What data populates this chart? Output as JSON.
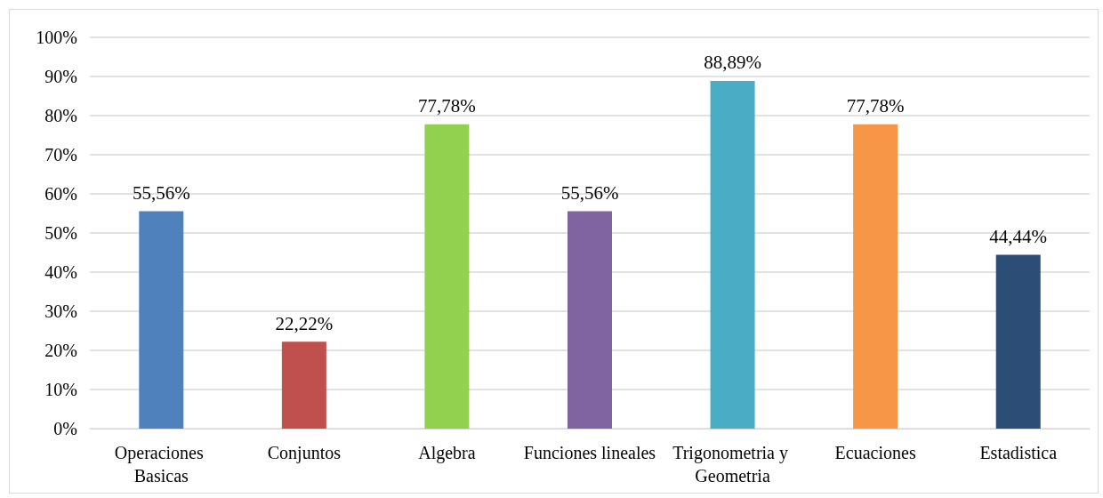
{
  "chart_data": {
    "type": "bar",
    "categories": [
      "Operaciones Basicas",
      "Conjuntos",
      "Algebra",
      "Funciones lineales",
      "Trigonometria y Geometria",
      "Ecuaciones",
      "Estadistica"
    ],
    "values": [
      55.56,
      22.22,
      77.78,
      55.56,
      88.89,
      77.78,
      44.44
    ],
    "value_labels": [
      "55,56%",
      "22,22%",
      "77,78%",
      "55,56%",
      "88,89%",
      "77,78%",
      "44,44%"
    ],
    "colors": [
      "#4f81bd",
      "#c0504d",
      "#92d050",
      "#8064a2",
      "#4bacc6",
      "#f79646",
      "#2c4d75"
    ],
    "ylim": [
      0,
      100
    ],
    "yticks": [
      {
        "value": 0,
        "label": "0%"
      },
      {
        "value": 10,
        "label": "10%"
      },
      {
        "value": 20,
        "label": "20%"
      },
      {
        "value": 30,
        "label": "30%"
      },
      {
        "value": 40,
        "label": "40%"
      },
      {
        "value": 50,
        "label": "50%"
      },
      {
        "value": 60,
        "label": "60%"
      },
      {
        "value": 70,
        "label": "70%"
      },
      {
        "value": 80,
        "label": "80%"
      },
      {
        "value": 90,
        "label": "90%"
      },
      {
        "value": 100,
        "label": "100%"
      }
    ],
    "grid": "y"
  }
}
